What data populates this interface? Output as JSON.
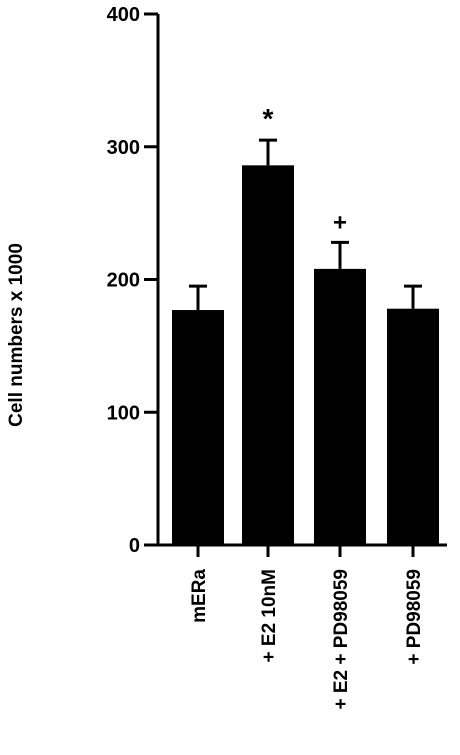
{
  "chart_data": {
    "type": "bar",
    "ylabel": "Cell numbers x 1000",
    "ylim": [
      0,
      400
    ],
    "yticks": [
      0,
      100,
      200,
      300,
      400
    ],
    "categories": [
      "mERa",
      "+ E2 10nM",
      "+ E2 + PD98059",
      "+ PD98059"
    ],
    "values": [
      177,
      286,
      208,
      178
    ],
    "errors": [
      18,
      19,
      20,
      17
    ],
    "annotations": [
      "",
      "*",
      "+",
      ""
    ],
    "colors": {
      "bar": "#000000",
      "axis": "#000000"
    }
  }
}
